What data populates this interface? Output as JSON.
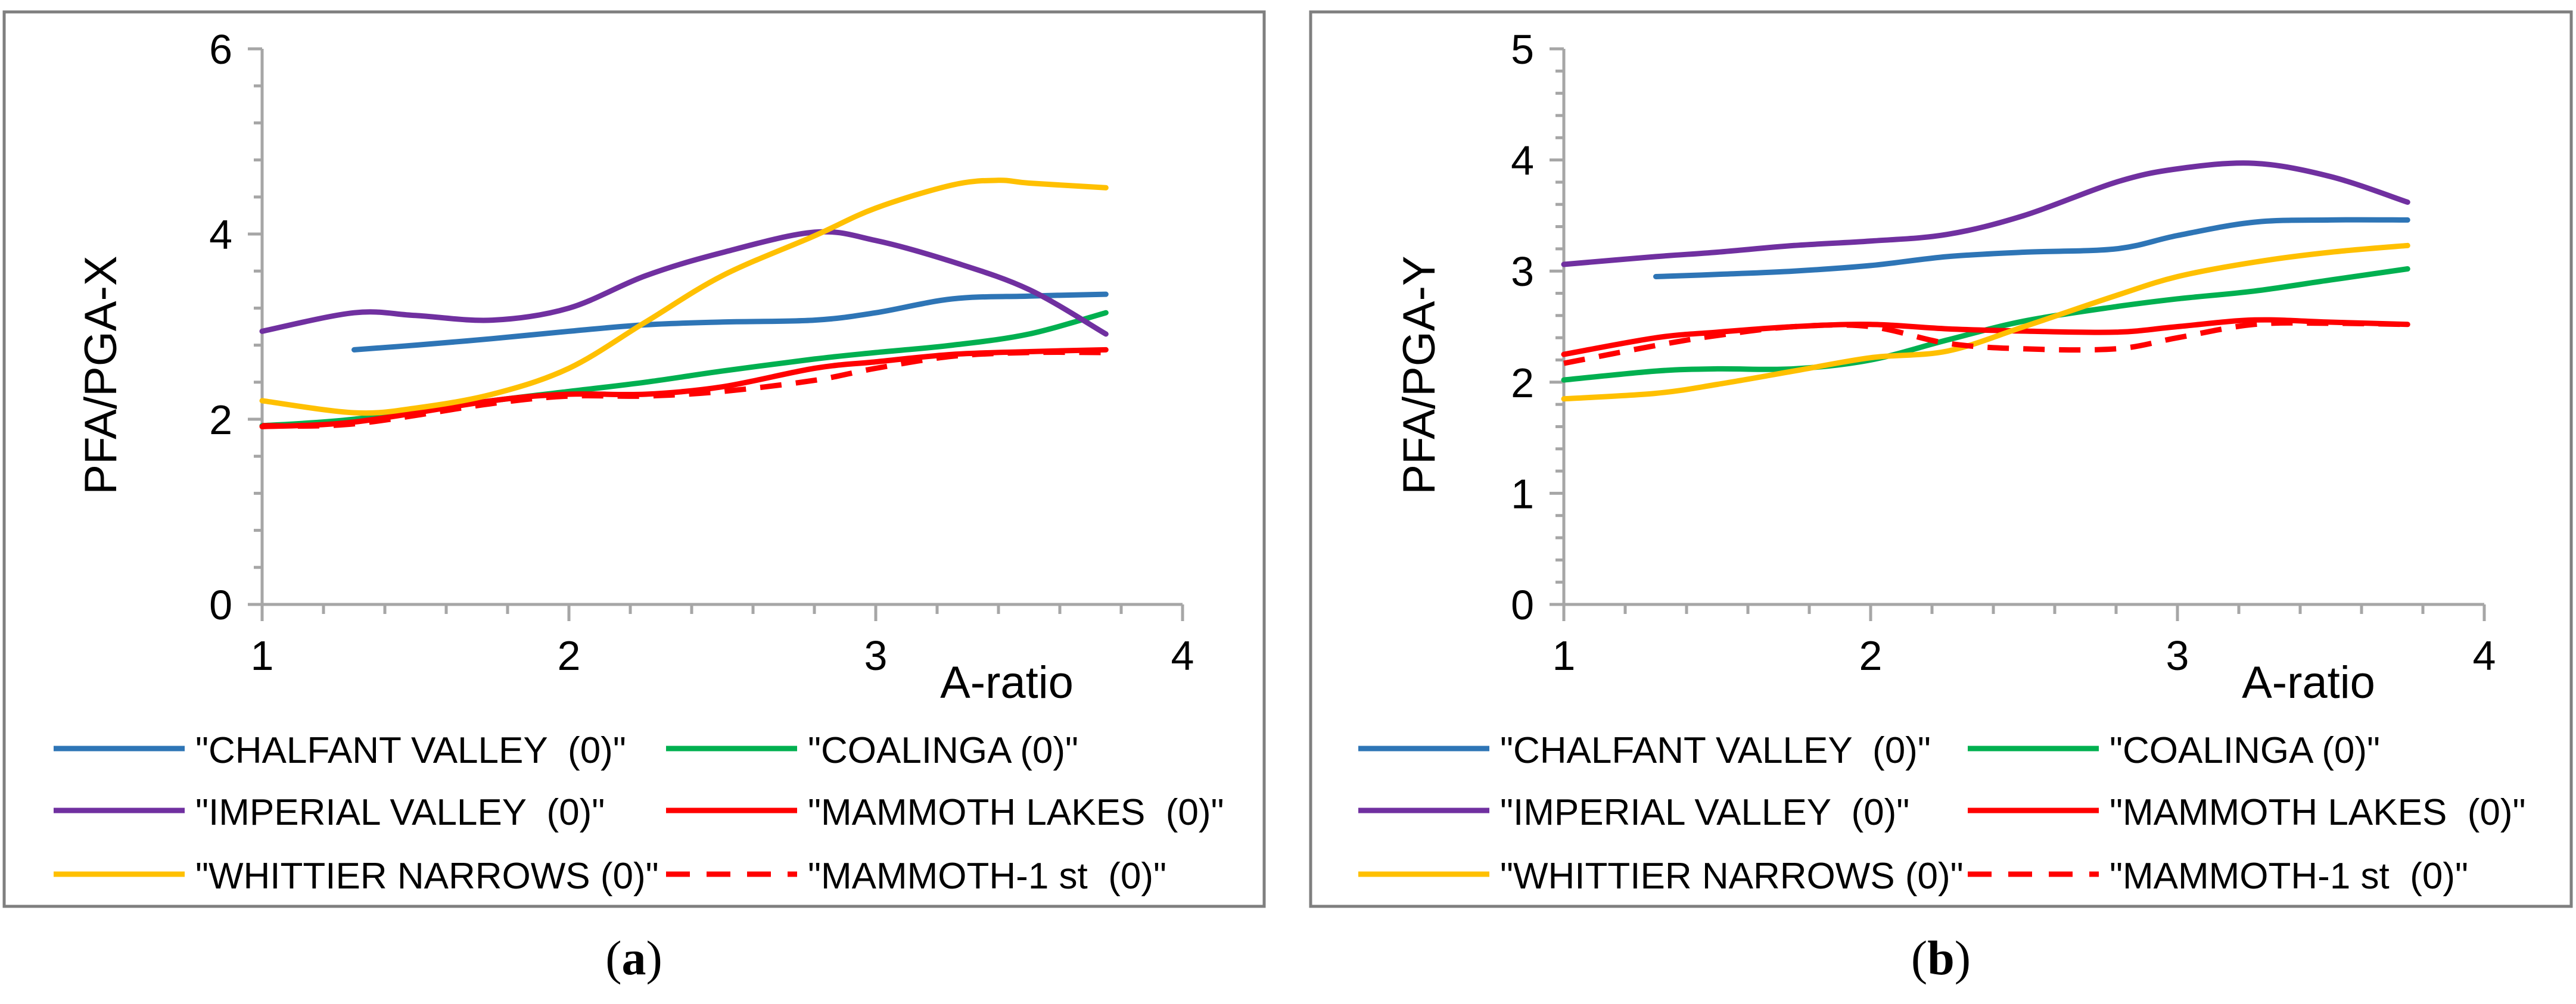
{
  "figure": {
    "caption_a": "(a)",
    "caption_a_letter": "a",
    "caption_b": "(b)",
    "caption_b_letter": "b"
  },
  "colors": {
    "chalfant": "#2E75B6",
    "coalinga": "#00B050",
    "imperial": "#7030A0",
    "mammoth": "#FF0000",
    "whittier": "#FFC000",
    "axis": "#A6A6A6",
    "frame": "#7F7F7F",
    "text": "#000000"
  },
  "chart_data": [
    {
      "type": "line",
      "panel": "a",
      "title": "",
      "xlabel": "A-ratio",
      "ylabel": "PFA/PGA-X",
      "xlim": [
        1,
        4
      ],
      "ylim": [
        0,
        6
      ],
      "x_ticks": [
        1,
        2,
        3,
        4
      ],
      "y_ticks": [
        0,
        2,
        4,
        6
      ],
      "grid": false,
      "legend_position": "bottom",
      "series": [
        {
          "key": "chalfant",
          "name": "\"CHALFANT VALLEY  (0)\"",
          "dashed": false,
          "x": [
            1.3,
            1.5,
            1.75,
            2.0,
            2.25,
            2.5,
            2.8,
            3.0,
            3.25,
            3.5,
            3.75
          ],
          "y": [
            2.75,
            2.8,
            2.87,
            2.95,
            3.02,
            3.05,
            3.07,
            3.15,
            3.3,
            3.33,
            3.35
          ]
        },
        {
          "key": "coalinga",
          "name": "\"COALINGA (0)\"",
          "dashed": false,
          "x": [
            1.0,
            1.3,
            1.75,
            2.0,
            2.25,
            2.5,
            2.8,
            3.0,
            3.25,
            3.5,
            3.75
          ],
          "y": [
            1.93,
            2.0,
            2.2,
            2.3,
            2.4,
            2.52,
            2.65,
            2.72,
            2.8,
            2.92,
            3.15
          ]
        },
        {
          "key": "imperial",
          "name": "\"IMPERIAL VALLEY  (0)\"",
          "dashed": false,
          "x": [
            1.0,
            1.3,
            1.5,
            1.75,
            2.0,
            2.25,
            2.5,
            2.8,
            3.0,
            3.25,
            3.5,
            3.75
          ],
          "y": [
            2.95,
            3.15,
            3.12,
            3.07,
            3.2,
            3.55,
            3.8,
            4.02,
            3.93,
            3.7,
            3.4,
            2.92
          ]
        },
        {
          "key": "mammoth",
          "name": "\"MAMMOTH LAKES  (0)\"",
          "dashed": false,
          "x": [
            1.0,
            1.3,
            1.75,
            2.0,
            2.25,
            2.5,
            2.8,
            3.0,
            3.25,
            3.5,
            3.75
          ],
          "y": [
            1.92,
            1.97,
            2.2,
            2.27,
            2.27,
            2.35,
            2.55,
            2.62,
            2.7,
            2.73,
            2.75
          ]
        },
        {
          "key": "whittier",
          "name": "\"WHITTIER NARROWS (0)\"",
          "dashed": false,
          "x": [
            1.0,
            1.3,
            1.5,
            1.75,
            2.0,
            2.25,
            2.5,
            2.8,
            3.0,
            3.25,
            3.4,
            3.5,
            3.75
          ],
          "y": [
            2.2,
            2.07,
            2.12,
            2.27,
            2.55,
            3.05,
            3.55,
            3.98,
            4.28,
            4.53,
            4.58,
            4.55,
            4.5
          ]
        },
        {
          "key": "mammoth",
          "name": "\"MAMMOTH-1 st  (0)\"",
          "dashed": true,
          "x": [
            1.0,
            1.3,
            1.75,
            2.0,
            2.25,
            2.5,
            2.8,
            3.0,
            3.25,
            3.5,
            3.75
          ],
          "y": [
            1.93,
            1.95,
            2.17,
            2.25,
            2.25,
            2.3,
            2.42,
            2.55,
            2.68,
            2.72,
            2.72
          ]
        }
      ]
    },
    {
      "type": "line",
      "panel": "b",
      "title": "",
      "xlabel": "A-ratio",
      "ylabel": "PFA/PGA-Y",
      "xlim": [
        1,
        4
      ],
      "ylim": [
        0,
        5
      ],
      "x_ticks": [
        1,
        2,
        3,
        4
      ],
      "y_ticks": [
        0,
        1,
        2,
        3,
        4,
        5
      ],
      "grid": false,
      "legend_position": "bottom",
      "series": [
        {
          "key": "chalfant",
          "name": "\"CHALFANT VALLEY  (0)\"",
          "dashed": false,
          "x": [
            1.3,
            1.5,
            1.75,
            2.0,
            2.25,
            2.5,
            2.8,
            3.0,
            3.25,
            3.5,
            3.75
          ],
          "y": [
            2.95,
            2.97,
            3.0,
            3.05,
            3.13,
            3.17,
            3.2,
            3.32,
            3.44,
            3.46,
            3.46
          ]
        },
        {
          "key": "coalinga",
          "name": "\"COALINGA (0)\"",
          "dashed": false,
          "x": [
            1.0,
            1.3,
            1.5,
            1.75,
            2.0,
            2.25,
            2.5,
            2.8,
            3.0,
            3.25,
            3.5,
            3.75
          ],
          "y": [
            2.02,
            2.1,
            2.12,
            2.12,
            2.2,
            2.38,
            2.55,
            2.68,
            2.75,
            2.82,
            2.92,
            3.02
          ]
        },
        {
          "key": "imperial",
          "name": "\"IMPERIAL VALLEY  (0)\"",
          "dashed": false,
          "x": [
            1.0,
            1.3,
            1.5,
            1.75,
            2.0,
            2.25,
            2.5,
            2.8,
            3.0,
            3.25,
            3.5,
            3.75
          ],
          "y": [
            3.06,
            3.13,
            3.17,
            3.23,
            3.27,
            3.33,
            3.5,
            3.8,
            3.92,
            3.97,
            3.85,
            3.62
          ]
        },
        {
          "key": "mammoth",
          "name": "\"MAMMOTH LAKES  (0)\"",
          "dashed": false,
          "x": [
            1.0,
            1.3,
            1.5,
            1.75,
            2.0,
            2.25,
            2.5,
            2.8,
            3.0,
            3.25,
            3.5,
            3.75
          ],
          "y": [
            2.25,
            2.4,
            2.45,
            2.5,
            2.52,
            2.48,
            2.46,
            2.45,
            2.5,
            2.56,
            2.54,
            2.52
          ]
        },
        {
          "key": "whittier",
          "name": "\"WHITTIER NARROWS (0)\"",
          "dashed": false,
          "x": [
            1.0,
            1.3,
            1.5,
            1.75,
            2.0,
            2.25,
            2.5,
            2.8,
            3.0,
            3.25,
            3.5,
            3.75
          ],
          "y": [
            1.85,
            1.9,
            1.98,
            2.1,
            2.22,
            2.28,
            2.5,
            2.78,
            2.95,
            3.08,
            3.17,
            3.23
          ]
        },
        {
          "key": "mammoth",
          "name": "\"MAMMOTH-1 st  (0)\"",
          "dashed": true,
          "x": [
            1.0,
            1.3,
            1.5,
            1.75,
            2.0,
            2.25,
            2.5,
            2.8,
            3.0,
            3.25,
            3.5,
            3.75
          ],
          "y": [
            2.17,
            2.33,
            2.42,
            2.5,
            2.5,
            2.35,
            2.3,
            2.3,
            2.4,
            2.52,
            2.53,
            2.52
          ]
        }
      ]
    }
  ]
}
